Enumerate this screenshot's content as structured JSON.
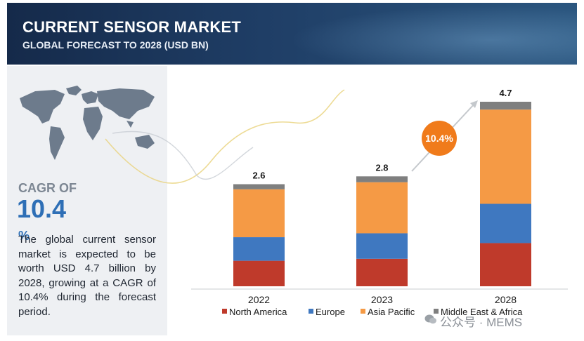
{
  "header": {
    "title": "CURRENT SENSOR MARKET",
    "subtitle": "GLOBAL FORECAST TO 2028 (USD BN)"
  },
  "side": {
    "cagr_label": "CAGR OF",
    "cagr_value": "10.4",
    "cagr_unit": "%",
    "description": "The global current sensor market is expected to be worth USD 4.7 billion by 2028, growing at a CAGR of 10.4% during the forecast period.",
    "map_icon": "world-map-icon"
  },
  "watermark": {
    "text": "公众号 · MEMS",
    "icon": "wechat-icon"
  },
  "colors": {
    "header_bg": "#1f3e66",
    "panel_bg": "#eef0f3",
    "north_america": "#bf3a2b",
    "europe": "#3f78c0",
    "asia_pacific": "#f59a45",
    "mea": "#7f7f7f",
    "cagr_bubble": "#f07b1b",
    "cagr_text": "#2e6fb6"
  },
  "chart_data": {
    "type": "bar",
    "stacked": true,
    "title": "CURRENT SENSOR MARKET",
    "subtitle": "GLOBAL FORECAST TO 2028 (USD BN)",
    "categories": [
      "2022",
      "2023",
      "2028"
    ],
    "totals": [
      2.6,
      2.8,
      4.7
    ],
    "series": [
      {
        "name": "North America",
        "values": [
          0.65,
          0.7,
          1.1
        ],
        "color": "#bf3a2b"
      },
      {
        "name": "Europe",
        "values": [
          0.6,
          0.65,
          1.0
        ],
        "color": "#3f78c0"
      },
      {
        "name": "Asia Pacific",
        "values": [
          1.22,
          1.3,
          2.4
        ],
        "color": "#f59a45"
      },
      {
        "name": "Middle East & Africa",
        "values": [
          0.13,
          0.15,
          0.2
        ],
        "color": "#7f7f7f"
      }
    ],
    "annotation": "10.4%",
    "legend": "bottom",
    "grid": false,
    "xlabel": "",
    "ylabel": "",
    "ylim": [
      0,
      4.7
    ]
  }
}
